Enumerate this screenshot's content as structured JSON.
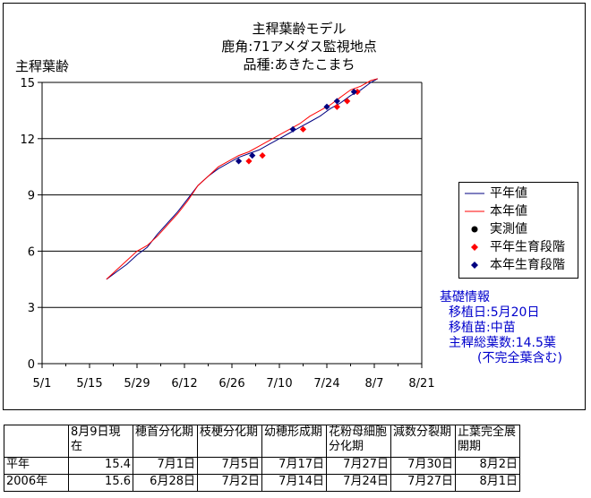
{
  "chart_data": {
    "type": "line",
    "title_lines": [
      "主稈葉齢モデル",
      "鹿角:71アメダス監視地点",
      "品種:あきたこまち"
    ],
    "ylabel": "主稈葉齢",
    "ylim": [
      0,
      15
    ],
    "yticks": [
      0,
      3,
      6,
      9,
      12,
      15
    ],
    "xlim_day": [
      0,
      112
    ],
    "x_ticks": [
      {
        "label": "5/1",
        "day": 0
      },
      {
        "label": "5/15",
        "day": 14
      },
      {
        "label": "5/29",
        "day": 28
      },
      {
        "label": "6/12",
        "day": 42
      },
      {
        "label": "6/26",
        "day": 56
      },
      {
        "label": "7/10",
        "day": 70
      },
      {
        "label": "7/24",
        "day": 84
      },
      {
        "label": "8/7",
        "day": 98
      },
      {
        "label": "8/21",
        "day": 112
      }
    ],
    "grid": "horizontal",
    "series": [
      {
        "name": "平年値",
        "color": "#000080",
        "points": [
          [
            19,
            4.5
          ],
          [
            22,
            4.9
          ],
          [
            25,
            5.3
          ],
          [
            28,
            5.8
          ],
          [
            31,
            6.2
          ],
          [
            34,
            6.9
          ],
          [
            37,
            7.5
          ],
          [
            40,
            8.1
          ],
          [
            43,
            8.8
          ],
          [
            46,
            9.5
          ],
          [
            49,
            10.0
          ],
          [
            52,
            10.4
          ],
          [
            55,
            10.7
          ],
          [
            58,
            11.0
          ],
          [
            61,
            11.2
          ],
          [
            64,
            11.4
          ],
          [
            67,
            11.7
          ],
          [
            70,
            12.0
          ],
          [
            73,
            12.3
          ],
          [
            76,
            12.6
          ],
          [
            79,
            12.9
          ],
          [
            82,
            13.2
          ],
          [
            85,
            13.6
          ],
          [
            88,
            13.9
          ],
          [
            91,
            14.3
          ],
          [
            94,
            14.6
          ],
          [
            97,
            15.0
          ],
          [
            99,
            15.2
          ]
        ]
      },
      {
        "name": "本年値",
        "color": "#ff0000",
        "points": [
          [
            19,
            4.5
          ],
          [
            22,
            5.0
          ],
          [
            25,
            5.5
          ],
          [
            28,
            6.0
          ],
          [
            31,
            6.3
          ],
          [
            34,
            6.8
          ],
          [
            37,
            7.4
          ],
          [
            40,
            8.0
          ],
          [
            43,
            8.7
          ],
          [
            46,
            9.5
          ],
          [
            49,
            10.0
          ],
          [
            52,
            10.5
          ],
          [
            55,
            10.8
          ],
          [
            58,
            11.1
          ],
          [
            61,
            11.3
          ],
          [
            64,
            11.6
          ],
          [
            67,
            11.9
          ],
          [
            70,
            12.2
          ],
          [
            73,
            12.5
          ],
          [
            76,
            12.8
          ],
          [
            79,
            13.2
          ],
          [
            82,
            13.5
          ],
          [
            85,
            13.8
          ],
          [
            88,
            14.2
          ],
          [
            91,
            14.6
          ],
          [
            94,
            14.8
          ],
          [
            97,
            15.1
          ],
          [
            99,
            15.2
          ]
        ]
      },
      {
        "name": "実測値",
        "color": "#000000",
        "points": []
      },
      {
        "name": "平年生育段階",
        "color": "#ff0000",
        "points": [
          [
            61,
            10.8
          ],
          [
            65,
            11.1
          ],
          [
            77,
            12.5
          ],
          [
            87,
            13.7
          ],
          [
            90,
            14.0
          ],
          [
            93,
            14.5
          ]
        ]
      },
      {
        "name": "本年生育段階",
        "color": "#000080",
        "points": [
          [
            58,
            10.8
          ],
          [
            62,
            11.1
          ],
          [
            74,
            12.5
          ],
          [
            84,
            13.7
          ],
          [
            87,
            14.0
          ],
          [
            92,
            14.5
          ]
        ]
      }
    ]
  },
  "info": {
    "heading": "基礎情報",
    "lines": [
      "移植日:5月20日",
      "移植苗:中苗",
      "主稈総葉数:14.5葉",
      "(不完全葉含む)"
    ]
  },
  "table": {
    "headers": [
      "",
      "8月9日現在",
      "穂首分化期",
      "枝梗分化期",
      "幼穂形成期",
      "花粉母細胞分化期",
      "減数分裂期",
      "止葉完全展開期"
    ],
    "rows": [
      [
        "平年",
        "15.4",
        "7月1日",
        "7月5日",
        "7月17日",
        "7月27日",
        "7月30日",
        "8月2日"
      ],
      [
        "2006年",
        "15.6",
        "6月28日",
        "7月2日",
        "7月14日",
        "7月24日",
        "7月27日",
        "8月1日"
      ]
    ]
  }
}
